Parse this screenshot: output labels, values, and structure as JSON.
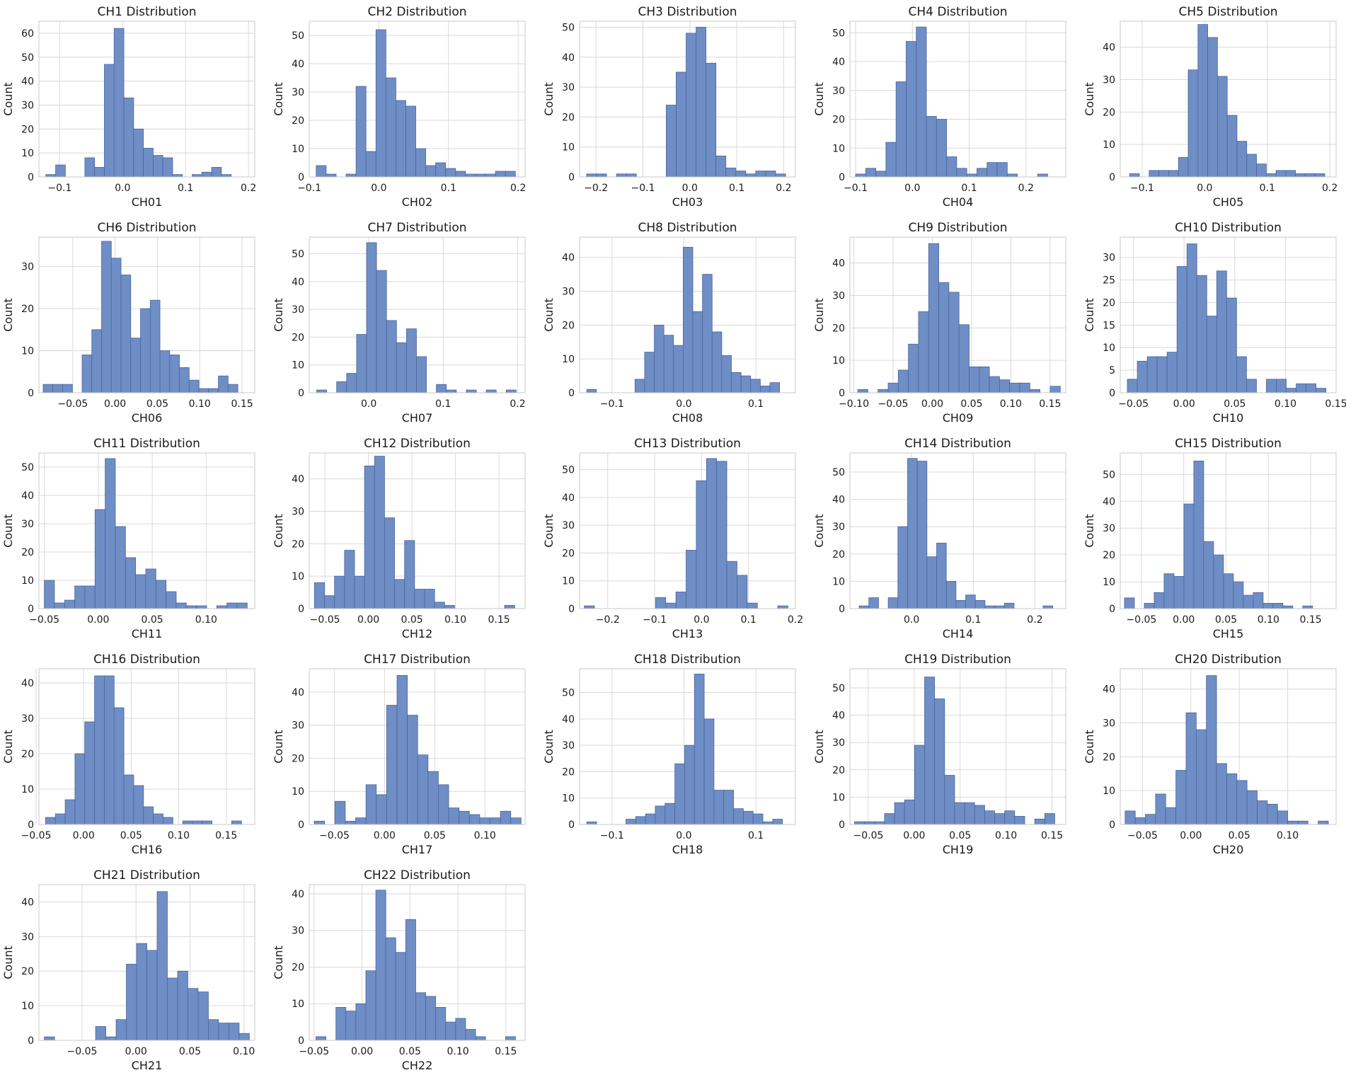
{
  "colors": {
    "bar_fill": "#6f8ec5",
    "bar_edge": "#4a659e",
    "grid": "#d9d9d9",
    "frame": "#c8c8c8"
  },
  "chart_data": [
    {
      "type": "bar",
      "title": "CH1 Distribution",
      "xlabel": "CH01",
      "ylabel": "Count",
      "grid": true,
      "xlim": [
        -0.133,
        0.21
      ],
      "ylim": [
        0,
        65
      ],
      "xticks": [
        -0.1,
        0.0,
        0.1,
        0.2
      ],
      "yticks": [
        0,
        10,
        20,
        30,
        40,
        50,
        60
      ],
      "bin_start": -0.122,
      "bin_width": 0.0155,
      "values": [
        1,
        5,
        0,
        0,
        8,
        4,
        47,
        62,
        33,
        20,
        12,
        9,
        8,
        1,
        0,
        1,
        2,
        4,
        1
      ]
    },
    {
      "type": "bar",
      "title": "CH2 Distribution",
      "xlabel": "CH02",
      "ylabel": "Count",
      "grid": true,
      "xlim": [
        -0.1,
        0.21
      ],
      "ylim": [
        0,
        55
      ],
      "xticks": [
        -0.1,
        0.0,
        0.1,
        0.2
      ],
      "yticks": [
        0,
        10,
        20,
        30,
        40,
        50
      ],
      "bin_start": -0.09,
      "bin_width": 0.0143,
      "values": [
        4,
        1,
        0,
        1,
        32,
        9,
        52,
        35,
        27,
        25,
        10,
        4,
        5,
        3,
        2,
        1,
        1,
        1,
        2,
        2
      ]
    },
    {
      "type": "bar",
      "title": "CH3 Distribution",
      "xlabel": "CH03",
      "ylabel": "Count",
      "grid": true,
      "xlim": [
        -0.235,
        0.225
      ],
      "ylim": [
        0,
        52
      ],
      "xticks": [
        -0.2,
        -0.1,
        0.0,
        0.1,
        0.2
      ],
      "yticks": [
        0,
        10,
        20,
        30,
        40,
        50
      ],
      "bin_start": -0.22,
      "bin_width": 0.0212,
      "values": [
        1,
        1,
        0,
        1,
        1,
        0,
        0,
        0,
        24,
        35,
        48,
        50,
        38,
        7,
        3,
        2,
        1,
        2,
        2,
        1
      ]
    },
    {
      "type": "bar",
      "title": "CH4 Distribution",
      "xlabel": "CH04",
      "ylabel": "Count",
      "grid": true,
      "xlim": [
        -0.11,
        0.27
      ],
      "ylim": [
        0,
        54
      ],
      "xticks": [
        -0.1,
        0.0,
        0.1,
        0.2
      ],
      "yticks": [
        0,
        10,
        20,
        30,
        40,
        50
      ],
      "bin_start": -0.1,
      "bin_width": 0.0178,
      "values": [
        1,
        3,
        2,
        12,
        33,
        47,
        52,
        21,
        20,
        7,
        3,
        1,
        3,
        5,
        5,
        1,
        0,
        0,
        1
      ]
    },
    {
      "type": "bar",
      "title": "CH5 Distribution",
      "xlabel": "CH05",
      "ylabel": "Count",
      "grid": true,
      "xlim": [
        -0.135,
        0.21
      ],
      "ylim": [
        0,
        48
      ],
      "xticks": [
        -0.1,
        0.0,
        0.1,
        0.2
      ],
      "yticks": [
        0,
        10,
        20,
        30,
        40
      ],
      "bin_start": -0.12,
      "bin_width": 0.0156,
      "values": [
        1,
        0,
        2,
        2,
        2,
        6,
        33,
        47,
        43,
        31,
        19,
        11,
        7,
        4,
        1,
        2,
        2,
        1,
        1,
        1
      ]
    },
    {
      "type": "bar",
      "title": "CH6 Distribution",
      "xlabel": "CH06",
      "ylabel": "Count",
      "grid": true,
      "xlim": [
        -0.09,
        0.165
      ],
      "ylim": [
        0,
        37
      ],
      "xticks": [
        -0.05,
        0.0,
        0.05,
        0.1,
        0.15
      ],
      "yticks": [
        0,
        10,
        20,
        30
      ],
      "bin_start": -0.085,
      "bin_width": 0.0115,
      "values": [
        2,
        2,
        2,
        0,
        9,
        15,
        36,
        32,
        28,
        13,
        20,
        22,
        10,
        9,
        6,
        3,
        1,
        1,
        4,
        2
      ]
    },
    {
      "type": "bar",
      "title": "CH7 Distribution",
      "xlabel": "CH07",
      "ylabel": "Count",
      "grid": true,
      "xlim": [
        -0.08,
        0.21
      ],
      "ylim": [
        0,
        56
      ],
      "xticks": [
        0.0,
        0.1,
        0.2
      ],
      "yticks": [
        0,
        10,
        20,
        30,
        40,
        50
      ],
      "bin_start": -0.07,
      "bin_width": 0.0134,
      "values": [
        1,
        0,
        4,
        7,
        21,
        54,
        44,
        26,
        18,
        23,
        13,
        0,
        3,
        1,
        0,
        1,
        0,
        1,
        0,
        1
      ]
    },
    {
      "type": "bar",
      "title": "CH8 Distribution",
      "xlabel": "CH08",
      "ylabel": "Count",
      "grid": true,
      "xlim": [
        -0.145,
        0.155
      ],
      "ylim": [
        0,
        46
      ],
      "xticks": [
        -0.1,
        0.0,
        0.1
      ],
      "yticks": [
        0,
        10,
        20,
        30,
        40
      ],
      "bin_start": -0.135,
      "bin_width": 0.0134,
      "values": [
        1,
        0,
        0,
        0,
        0,
        4,
        12,
        20,
        17,
        14,
        43,
        24,
        35,
        18,
        11,
        6,
        5,
        4,
        2,
        3
      ]
    },
    {
      "type": "bar",
      "title": "CH9 Distribution",
      "xlabel": "CH09",
      "ylabel": "Count",
      "grid": true,
      "xlim": [
        -0.105,
        0.17
      ],
      "ylim": [
        0,
        48
      ],
      "xticks": [
        -0.1,
        -0.05,
        0.0,
        0.05,
        0.1,
        0.15
      ],
      "yticks": [
        0,
        10,
        20,
        30,
        40
      ],
      "bin_start": -0.095,
      "bin_width": 0.0129,
      "values": [
        1,
        0,
        1,
        3,
        7,
        15,
        25,
        46,
        34,
        31,
        21,
        8,
        8,
        5,
        4,
        3,
        3,
        1,
        0,
        2
      ]
    },
    {
      "type": "bar",
      "title": "CH10 Distribution",
      "xlabel": "CH10",
      "ylabel": "Count",
      "grid": true,
      "xlim": [
        -0.063,
        0.15
      ],
      "ylim": [
        0,
        34.5
      ],
      "xticks": [
        -0.05,
        0.0,
        0.05,
        0.1,
        0.15
      ],
      "yticks": [
        0,
        5,
        10,
        15,
        20,
        25,
        30
      ],
      "bin_start": -0.056,
      "bin_width": 0.0098,
      "values": [
        3,
        7,
        8,
        8,
        9,
        28,
        33,
        26,
        17,
        27,
        21,
        8,
        3,
        0,
        3,
        3,
        1,
        2,
        2,
        1
      ]
    },
    {
      "type": "bar",
      "title": "CH11 Distribution",
      "xlabel": "CH11",
      "ylabel": "Count",
      "grid": true,
      "xlim": [
        -0.055,
        0.145
      ],
      "ylim": [
        0,
        55
      ],
      "xticks": [
        -0.05,
        0.0,
        0.05,
        0.1
      ],
      "yticks": [
        0,
        10,
        20,
        30,
        40,
        50
      ],
      "bin_start": -0.05,
      "bin_width": 0.0094,
      "values": [
        10,
        2,
        3,
        8,
        8,
        35,
        53,
        29,
        18,
        12,
        14,
        10,
        6,
        2,
        1,
        1,
        0,
        1,
        2,
        2
      ]
    },
    {
      "type": "bar",
      "title": "CH12 Distribution",
      "xlabel": "CH12",
      "ylabel": "Count",
      "grid": true,
      "xlim": [
        -0.068,
        0.18
      ],
      "ylim": [
        0,
        48
      ],
      "xticks": [
        -0.05,
        0.0,
        0.05,
        0.1,
        0.15
      ],
      "yticks": [
        0,
        10,
        20,
        30,
        40
      ],
      "bin_start": -0.062,
      "bin_width": 0.0115,
      "values": [
        8,
        4,
        10,
        18,
        10,
        44,
        47,
        28,
        9,
        21,
        6,
        6,
        2,
        1,
        0,
        0,
        0,
        0,
        0,
        1
      ]
    },
    {
      "type": "bar",
      "title": "CH13 Distribution",
      "xlabel": "CH13",
      "ylabel": "Count",
      "grid": true,
      "xlim": [
        -0.26,
        0.2
      ],
      "ylim": [
        0,
        56
      ],
      "xticks": [
        -0.2,
        -0.1,
        0.0,
        0.1,
        0.2
      ],
      "yticks": [
        0,
        10,
        20,
        30,
        40,
        50
      ],
      "bin_start": -0.25,
      "bin_width": 0.0217,
      "values": [
        1,
        0,
        0,
        0,
        0,
        0,
        0,
        4,
        2,
        6,
        21,
        46,
        54,
        53,
        17,
        12,
        2,
        0,
        0,
        1
      ]
    },
    {
      "type": "bar",
      "title": "CH14 Distribution",
      "xlabel": "CH14",
      "ylabel": "Count",
      "grid": true,
      "xlim": [
        -0.1,
        0.25
      ],
      "ylim": [
        0,
        57
      ],
      "xticks": [
        0.0,
        0.1,
        0.2
      ],
      "yticks": [
        0,
        10,
        20,
        30,
        40,
        50
      ],
      "bin_start": -0.085,
      "bin_width": 0.0157,
      "values": [
        1,
        4,
        0,
        4,
        30,
        55,
        54,
        19,
        24,
        10,
        3,
        5,
        3,
        1,
        1,
        2,
        0,
        0,
        0,
        1
      ]
    },
    {
      "type": "bar",
      "title": "CH15 Distribution",
      "xlabel": "CH15",
      "ylabel": "Count",
      "grid": true,
      "xlim": [
        -0.075,
        0.18
      ],
      "ylim": [
        0,
        58
      ],
      "xticks": [
        -0.05,
        0.0,
        0.05,
        0.1,
        0.15
      ],
      "yticks": [
        0,
        10,
        20,
        30,
        40,
        50
      ],
      "bin_start": -0.07,
      "bin_width": 0.0117,
      "values": [
        4,
        0,
        2,
        6,
        13,
        12,
        39,
        55,
        25,
        20,
        13,
        10,
        5,
        6,
        2,
        2,
        1,
        0,
        1
      ]
    },
    {
      "type": "bar",
      "title": "CH16 Distribution",
      "xlabel": "CH16",
      "ylabel": "Count",
      "grid": true,
      "xlim": [
        -0.047,
        0.18
      ],
      "ylim": [
        0,
        44
      ],
      "xticks": [
        -0.05,
        0.0,
        0.05,
        0.1,
        0.15
      ],
      "yticks": [
        0,
        10,
        20,
        30,
        40
      ],
      "bin_start": -0.04,
      "bin_width": 0.0103,
      "values": [
        2,
        3,
        7,
        20,
        29,
        42,
        42,
        33,
        14,
        11,
        5,
        3,
        2,
        0,
        1,
        1,
        1,
        0,
        0,
        1
      ]
    },
    {
      "type": "bar",
      "title": "CH17 Distribution",
      "xlabel": "CH17",
      "ylabel": "Count",
      "grid": true,
      "xlim": [
        -0.075,
        0.14
      ],
      "ylim": [
        0,
        47
      ],
      "xticks": [
        -0.05,
        0.0,
        0.05,
        0.1
      ],
      "yticks": [
        0,
        10,
        20,
        30,
        40
      ],
      "bin_start": -0.07,
      "bin_width": 0.0103,
      "values": [
        1,
        0,
        7,
        1,
        2,
        12,
        9,
        36,
        45,
        33,
        21,
        16,
        12,
        5,
        4,
        3,
        2,
        2,
        4,
        2
      ]
    },
    {
      "type": "bar",
      "title": "CH18 Distribution",
      "xlabel": "CH18",
      "ylabel": "Count",
      "grid": true,
      "xlim": [
        -0.145,
        0.155
      ],
      "ylim": [
        0,
        59
      ],
      "xticks": [
        -0.1,
        0.0,
        0.1
      ],
      "yticks": [
        0,
        10,
        20,
        30,
        40,
        50
      ],
      "bin_start": -0.135,
      "bin_width": 0.0136,
      "values": [
        1,
        0,
        0,
        0,
        2,
        3,
        4,
        7,
        8,
        23,
        30,
        57,
        40,
        13,
        13,
        6,
        5,
        4,
        1,
        2
      ]
    },
    {
      "type": "bar",
      "title": "CH19 Distribution",
      "xlabel": "CH19",
      "ylabel": "Count",
      "grid": true,
      "xlim": [
        -0.07,
        0.165
      ],
      "ylim": [
        0,
        57
      ],
      "xticks": [
        -0.05,
        0.0,
        0.05,
        0.1,
        0.15
      ],
      "yticks": [
        0,
        10,
        20,
        30,
        40,
        50
      ],
      "bin_start": -0.065,
      "bin_width": 0.0109,
      "values": [
        1,
        1,
        1,
        4,
        8,
        9,
        29,
        54,
        46,
        18,
        8,
        8,
        7,
        5,
        4,
        5,
        3,
        0,
        2,
        4
      ]
    },
    {
      "type": "bar",
      "title": "CH20 Distribution",
      "xlabel": "CH20",
      "ylabel": "Count",
      "grid": true,
      "xlim": [
        -0.073,
        0.15
      ],
      "ylim": [
        0,
        46
      ],
      "xticks": [
        -0.05,
        0.0,
        0.05,
        0.1
      ],
      "yticks": [
        0,
        10,
        20,
        30,
        40
      ],
      "bin_start": -0.068,
      "bin_width": 0.0105,
      "values": [
        4,
        2,
        3,
        9,
        5,
        16,
        33,
        28,
        44,
        18,
        15,
        13,
        10,
        7,
        6,
        4,
        1,
        1,
        0,
        1
      ]
    },
    {
      "type": "bar",
      "title": "CH21 Distribution",
      "xlabel": "CH21",
      "ylabel": "Count",
      "grid": true,
      "xlim": [
        -0.09,
        0.11
      ],
      "ylim": [
        0,
        45
      ],
      "xticks": [
        -0.05,
        0.0,
        0.05,
        0.1
      ],
      "yticks": [
        0,
        10,
        20,
        30,
        40
      ],
      "bin_start": -0.085,
      "bin_width": 0.0095,
      "values": [
        1,
        0,
        0,
        0,
        0,
        4,
        1,
        6,
        22,
        28,
        26,
        43,
        18,
        20,
        15,
        14,
        6,
        5,
        5,
        2
      ]
    },
    {
      "type": "bar",
      "title": "CH22 Distribution",
      "xlabel": "CH22",
      "ylabel": "Count",
      "grid": true,
      "xlim": [
        -0.055,
        0.17
      ],
      "ylim": [
        0,
        42.5
      ],
      "xticks": [
        -0.05,
        0.0,
        0.05,
        0.1,
        0.15
      ],
      "yticks": [
        0,
        10,
        20,
        30,
        40
      ],
      "bin_start": -0.048,
      "bin_width": 0.0104,
      "values": [
        1,
        0,
        9,
        8,
        10,
        19,
        41,
        28,
        24,
        33,
        13,
        12,
        9,
        5,
        6,
        3,
        1,
        0,
        0,
        1
      ]
    }
  ]
}
